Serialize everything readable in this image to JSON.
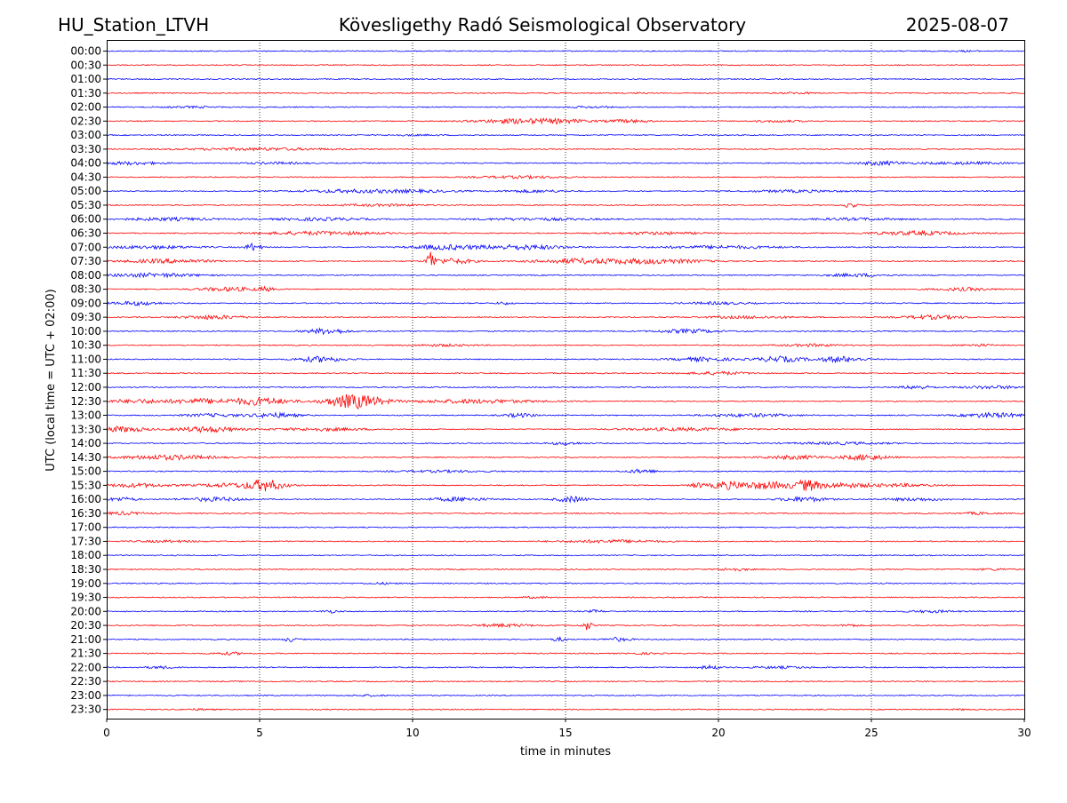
{
  "header": {
    "station": "HU_Station_LTVH",
    "observatory": "Kövesligethy Radó Seismological Observatory",
    "date": "2025-08-07"
  },
  "chart_data": {
    "type": "line",
    "title": "Kövesligethy Radó Seismological Observatory",
    "xlabel": "time in minutes",
    "ylabel": "UTC (local time = UTC + 02:00)",
    "xlim": [
      0,
      30
    ],
    "x_ticks": [
      "0",
      "5",
      "10",
      "15",
      "20",
      "25",
      "30"
    ],
    "x_tick_values": [
      0,
      5,
      10,
      15,
      20,
      25,
      30
    ],
    "vertical_gridlines_at": [
      5,
      10,
      15,
      20,
      25
    ],
    "grid": "dotted vertical",
    "series_colors": [
      "#0000ff",
      "#ff0000"
    ],
    "rows": [
      {
        "label": "00:00",
        "events": [
          [
            28,
            0.8,
            0.6
          ]
        ]
      },
      {
        "label": "00:30",
        "events": []
      },
      {
        "label": "01:00",
        "events": []
      },
      {
        "label": "01:30",
        "events": [
          [
            22.6,
            1.2,
            0.8
          ],
          [
            17.3,
            0.8,
            0.3
          ]
        ]
      },
      {
        "label": "02:00",
        "events": [
          [
            2.8,
            1.5,
            0.8
          ],
          [
            15.8,
            1.5,
            0.8
          ]
        ]
      },
      {
        "label": "02:30",
        "events": [
          [
            13.6,
            3,
            2.5
          ],
          [
            17,
            1.5,
            1.5
          ],
          [
            15,
            1.5,
            1.2
          ],
          [
            22,
            1.5,
            1
          ]
        ]
      },
      {
        "label": "03:00",
        "events": [
          [
            10,
            2,
            0.5
          ]
        ]
      },
      {
        "label": "03:30",
        "events": [
          [
            5,
            5,
            1.2
          ]
        ]
      },
      {
        "label": "04:00",
        "events": [
          [
            0.8,
            2,
            1.5
          ],
          [
            25.3,
            1.5,
            2
          ],
          [
            5.5,
            2,
            1
          ],
          [
            28,
            3,
            1.2
          ]
        ]
      },
      {
        "label": "04:30",
        "events": [
          [
            13.5,
            3,
            1.2
          ]
        ]
      },
      {
        "label": "05:00",
        "events": [
          [
            7.8,
            3,
            1.5
          ],
          [
            10,
            3,
            1.3
          ],
          [
            14,
            2,
            1.3
          ],
          [
            22.5,
            3,
            1.2
          ]
        ]
      },
      {
        "label": "05:30",
        "events": [
          [
            24.3,
            0.4,
            3
          ],
          [
            9,
            3,
            1
          ]
        ]
      },
      {
        "label": "06:00",
        "events": [
          [
            2,
            3,
            1.5
          ],
          [
            7,
            3,
            1.5
          ],
          [
            14,
            4,
            1.2
          ],
          [
            24.5,
            3,
            1.2
          ]
        ]
      },
      {
        "label": "06:30",
        "events": [
          [
            7,
            4,
            1.8
          ],
          [
            26.5,
            3,
            2
          ],
          [
            18,
            3,
            1.3
          ]
        ]
      },
      {
        "label": "07:00",
        "events": [
          [
            4.8,
            0.5,
            4
          ],
          [
            11,
            2,
            2.5
          ],
          [
            13.5,
            3,
            2.5
          ],
          [
            1.5,
            3,
            1.5
          ],
          [
            20,
            4,
            1.5
          ]
        ]
      },
      {
        "label": "07:30",
        "events": [
          [
            10.6,
            0.25,
            12
          ],
          [
            11.3,
            1.3,
            3
          ],
          [
            15.5,
            3,
            2.5
          ],
          [
            18,
            3,
            2.5
          ],
          [
            2,
            3,
            2
          ]
        ]
      },
      {
        "label": "08:00",
        "events": [
          [
            1.5,
            3,
            2
          ],
          [
            24.5,
            2,
            1.5
          ]
        ]
      },
      {
        "label": "08:30",
        "events": [
          [
            4,
            2,
            2
          ],
          [
            5.2,
            0.5,
            2
          ],
          [
            28,
            2,
            1.5
          ]
        ]
      },
      {
        "label": "09:00",
        "events": [
          [
            1,
            1.5,
            2
          ],
          [
            13,
            0.5,
            1.5
          ],
          [
            20,
            2,
            1.2
          ]
        ]
      },
      {
        "label": "09:30",
        "events": [
          [
            3.5,
            2,
            2
          ],
          [
            27,
            2,
            2
          ],
          [
            21,
            3,
            1.2
          ]
        ]
      },
      {
        "label": "10:00",
        "events": [
          [
            7.2,
            1.3,
            3
          ],
          [
            19,
            2,
            2
          ]
        ]
      },
      {
        "label": "10:30",
        "events": [
          [
            23,
            2,
            1.2
          ],
          [
            28.5,
            1,
            1.2
          ],
          [
            11,
            2,
            1
          ]
        ]
      },
      {
        "label": "11:00",
        "events": [
          [
            7,
            1.5,
            3
          ],
          [
            22,
            1.5,
            3
          ],
          [
            24,
            1.5,
            3
          ],
          [
            19.5,
            2,
            2
          ]
        ]
      },
      {
        "label": "11:30",
        "events": [
          [
            20,
            2,
            1.5
          ]
        ]
      },
      {
        "label": "12:00",
        "events": [
          [
            26.5,
            1,
            2
          ],
          [
            29,
            2,
            1.5
          ]
        ]
      },
      {
        "label": "12:30",
        "events": [
          [
            8.1,
            1.8,
            8
          ],
          [
            5,
            2,
            4
          ],
          [
            3,
            2,
            2.5
          ],
          [
            12,
            4,
            2
          ],
          [
            1,
            2,
            2
          ]
        ]
      },
      {
        "label": "13:00",
        "events": [
          [
            5.5,
            1.5,
            2.5
          ],
          [
            29,
            2,
            2.5
          ],
          [
            13.5,
            1,
            2
          ],
          [
            3.5,
            2,
            1.5
          ],
          [
            21,
            3,
            1.5
          ]
        ]
      },
      {
        "label": "13:30",
        "events": [
          [
            0.5,
            1.5,
            3
          ],
          [
            3.3,
            2,
            3
          ],
          [
            7,
            3,
            1.5
          ],
          [
            19,
            4,
            1.5
          ]
        ]
      },
      {
        "label": "14:00",
        "events": [
          [
            15,
            1,
            1.5
          ],
          [
            24,
            3,
            1.2
          ]
        ]
      },
      {
        "label": "14:30",
        "events": [
          [
            2,
            3,
            2.5
          ],
          [
            24.8,
            1.5,
            3
          ],
          [
            22.5,
            2,
            2
          ]
        ]
      },
      {
        "label": "15:00",
        "events": [
          [
            17.5,
            1,
            2
          ],
          [
            11,
            3,
            1
          ]
        ]
      },
      {
        "label": "15:30",
        "events": [
          [
            5.2,
            1.2,
            6
          ],
          [
            1,
            2,
            2
          ],
          [
            4,
            2,
            2
          ],
          [
            21.5,
            2,
            4
          ],
          [
            22.9,
            0.8,
            5
          ],
          [
            20.2,
            1,
            3.5
          ],
          [
            24,
            2,
            2.5
          ],
          [
            19.3,
            0.4,
            3
          ],
          [
            26,
            2,
            1.5
          ]
        ]
      },
      {
        "label": "16:00",
        "events": [
          [
            15.2,
            1,
            3
          ],
          [
            22.8,
            1.5,
            2.5
          ],
          [
            0.5,
            1,
            2
          ],
          [
            3.5,
            2,
            2
          ],
          [
            11.5,
            2,
            2
          ],
          [
            26.5,
            2,
            1.5
          ]
        ]
      },
      {
        "label": "16:30",
        "events": [
          [
            0.5,
            1.5,
            1.5
          ],
          [
            28.5,
            1,
            1.2
          ]
        ]
      },
      {
        "label": "17:00",
        "events": []
      },
      {
        "label": "17:30",
        "events": [
          [
            16.5,
            3,
            1.5
          ],
          [
            2,
            2,
            1
          ]
        ]
      },
      {
        "label": "18:00",
        "events": []
      },
      {
        "label": "18:30",
        "events": [
          [
            20.5,
            1,
            1.5
          ],
          [
            29,
            1,
            1
          ]
        ]
      },
      {
        "label": "19:00",
        "events": [
          [
            9,
            1,
            0.8
          ]
        ]
      },
      {
        "label": "19:30",
        "events": [
          [
            14,
            1,
            0.8
          ]
        ]
      },
      {
        "label": "20:00",
        "events": [
          [
            7.3,
            0.5,
            1.5
          ],
          [
            16,
            0.5,
            1.5
          ],
          [
            27,
            1.5,
            1.2
          ]
        ]
      },
      {
        "label": "20:30",
        "events": [
          [
            15.7,
            0.3,
            5
          ],
          [
            13,
            2,
            1.5
          ],
          [
            24.3,
            0.5,
            1.5
          ]
        ]
      },
      {
        "label": "21:00",
        "events": [
          [
            6,
            0.5,
            2
          ],
          [
            14.8,
            0.5,
            2
          ],
          [
            16.7,
            0.8,
            2
          ]
        ]
      },
      {
        "label": "21:30",
        "events": [
          [
            4,
            1,
            1.3
          ],
          [
            17.5,
            1,
            0.8
          ]
        ]
      },
      {
        "label": "22:00",
        "events": [
          [
            19.7,
            0.6,
            2
          ],
          [
            1.8,
            1,
            1.2
          ],
          [
            22,
            2,
            1
          ]
        ]
      },
      {
        "label": "22:30",
        "events": []
      },
      {
        "label": "23:00",
        "events": [
          [
            8.5,
            1,
            0.8
          ]
        ]
      },
      {
        "label": "23:30",
        "events": [
          [
            3,
            1,
            0.6
          ],
          [
            28,
            0.5,
            0.6
          ]
        ]
      }
    ]
  }
}
